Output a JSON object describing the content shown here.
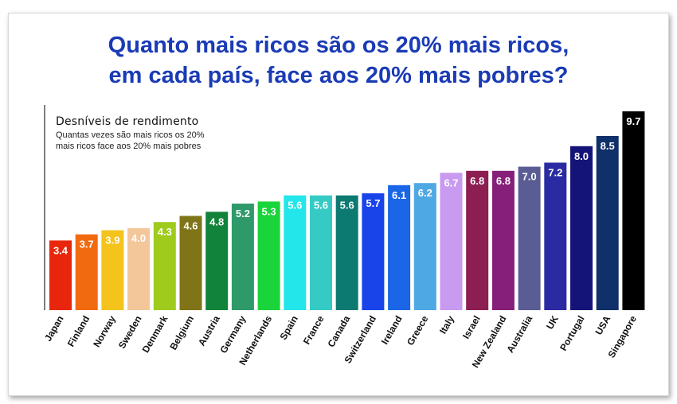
{
  "chart_data": {
    "type": "bar",
    "title": [
      "Quanto mais ricos são os 20% mais ricos,",
      "em cada país, face aos 20% mais pobres?"
    ],
    "legend_title": "Desníveis de rendimento",
    "legend_subtitle": [
      "Quantas vezes são mais ricos os 20%",
      "mais ricos face aos 20% mais pobres"
    ],
    "categories": [
      "Japan",
      "Finland",
      "Norway",
      "Sweden",
      "Denmark",
      "Belgium",
      "Austria",
      "Germany",
      "Netherlands",
      "Spain",
      "France",
      "Canada",
      "Switzerland",
      "Ireland",
      "Greece",
      "Italy",
      "Israel",
      "New Zealand",
      "Australia",
      "UK",
      "Portugal",
      "USA",
      "Singapore"
    ],
    "values": [
      3.4,
      3.7,
      3.9,
      4.0,
      4.3,
      4.6,
      4.8,
      5.2,
      5.3,
      5.6,
      5.6,
      5.6,
      5.7,
      6.1,
      6.2,
      6.7,
      6.8,
      6.8,
      7.0,
      7.2,
      8.0,
      8.5,
      9.7
    ],
    "value_labels": [
      "3.4",
      "3.7",
      "3.9",
      "4.0",
      "4.3",
      "4.6",
      "4.8",
      "5.2",
      "5.3",
      "5.6",
      "5.6",
      "5.6",
      "5.7",
      "6.1",
      "6.2",
      "6.7",
      "6.8",
      "6.8",
      "7.0",
      "7.2",
      "8.0",
      "8.5",
      "9.7"
    ],
    "colors": [
      "#e8260c",
      "#f26a10",
      "#f4c31c",
      "#f3c79a",
      "#9fcb1c",
      "#7f7418",
      "#12833a",
      "#2e9a6a",
      "#19d43a",
      "#22e6ea",
      "#35cbc4",
      "#0d7a72",
      "#1844ea",
      "#1a66e6",
      "#4ea8e4",
      "#c89af0",
      "#8c1e52",
      "#861f7a",
      "#5a5c94",
      "#2a2aa2",
      "#141478",
      "#10306a",
      "#000000"
    ],
    "ylim": [
      0,
      10
    ],
    "grid": false,
    "legend_position": "top-left"
  }
}
